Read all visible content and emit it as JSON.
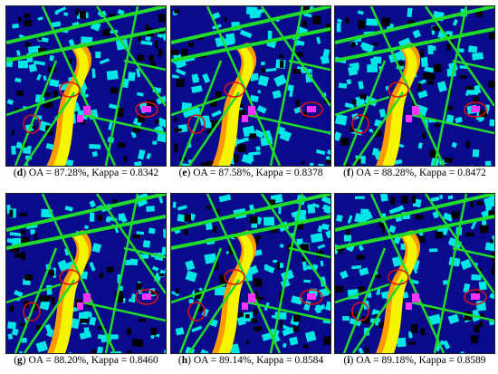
{
  "panels": [
    {
      "letter": "d",
      "text": "OA = 87.28%, Kappa = 0.8342"
    },
    {
      "letter": "e",
      "text": "OA = 87.58%, Kappa = 0.8378"
    },
    {
      "letter": "f",
      "text": "OA = 88.28%, Kappa = 0.8472"
    },
    {
      "letter": "g",
      "text": "OA = 88.20%, Kappa = 0.8460"
    },
    {
      "letter": "h",
      "text": "OA = 89.14%, Kappa = 0.8584"
    },
    {
      "letter": "i",
      "text": "OA = 89.18%, Kappa = 0.8589"
    }
  ],
  "colors": {
    "background_class": "#0a0a8c",
    "road_class": "#1fdc2a",
    "building_class": "#00e5e5",
    "dark_class": "#000000",
    "bare_soil_class": "#f5f500",
    "orange_class": "#ff9a00",
    "magenta_class": "#ff33ff",
    "highlight_circle": "#e01010"
  }
}
